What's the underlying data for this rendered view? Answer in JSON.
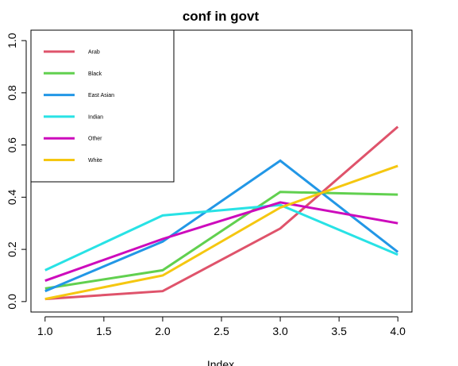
{
  "chart_data": {
    "type": "line",
    "title": "conf in govt",
    "xlabel": "Index",
    "ylabel": "",
    "x": [
      1,
      2,
      3,
      4
    ],
    "xlim": [
      0.88,
      4.12
    ],
    "ylim": [
      -0.04,
      1.04
    ],
    "x_ticks": [
      "1.0",
      "1.5",
      "2.0",
      "2.5",
      "3.0",
      "3.5",
      "4.0"
    ],
    "x_tick_values": [
      1.0,
      1.5,
      2.0,
      2.5,
      3.0,
      3.5,
      4.0
    ],
    "y_ticks": [
      "0.0",
      "0.2",
      "0.4",
      "0.6",
      "0.8",
      "1.0"
    ],
    "y_tick_values": [
      0.0,
      0.2,
      0.4,
      0.6,
      0.8,
      1.0
    ],
    "grid": false,
    "legend_position": "top-left",
    "series": [
      {
        "name": "Arab",
        "color": "#DF536B",
        "values": [
          0.01,
          0.04,
          0.28,
          0.67
        ]
      },
      {
        "name": "Black",
        "color": "#61D04F",
        "values": [
          0.05,
          0.12,
          0.42,
          0.41
        ]
      },
      {
        "name": "East Asian",
        "color": "#2297E6",
        "values": [
          0.04,
          0.23,
          0.54,
          0.19
        ]
      },
      {
        "name": "Indian",
        "color": "#28E2E5",
        "values": [
          0.12,
          0.33,
          0.37,
          0.18
        ]
      },
      {
        "name": "Other",
        "color": "#CD0BBC",
        "values": [
          0.08,
          0.24,
          0.38,
          0.3
        ]
      },
      {
        "name": "White",
        "color": "#F5C710",
        "values": [
          0.01,
          0.1,
          0.36,
          0.52
        ]
      }
    ]
  }
}
